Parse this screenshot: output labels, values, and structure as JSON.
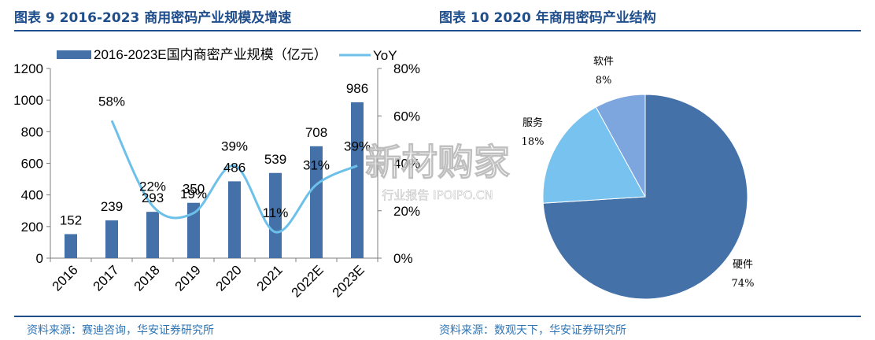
{
  "header": {
    "left_title": "图表 9 2016-2023 商用密码产业规模及增速",
    "right_title": "图表 10 2020 年商用密码产业结构"
  },
  "footer": {
    "left_source": "资料来源：赛迪咨询，华安证券研究所",
    "right_source": "资料来源：数观天下，华安证券研究所"
  },
  "watermark": {
    "main": "新材购家",
    "sub": "行业报告 IPOIPO.CN"
  },
  "colors": {
    "bar": "#4472a8",
    "line": "#6cc0ea",
    "pie": [
      "#4472a8",
      "#78c2f0",
      "#7ea6de"
    ]
  },
  "chart_data": [
    {
      "type": "bar+line",
      "categories": [
        "2016",
        "2017",
        "2018",
        "2019",
        "2020",
        "2021",
        "2022E",
        "2023E"
      ],
      "series": [
        {
          "name": "2016-2023E国内商密产业规模（亿元）",
          "type": "bar",
          "axis": "left",
          "values": [
            152,
            239,
            293,
            350,
            486,
            539,
            708,
            986
          ],
          "labels": [
            "152",
            "239",
            "293",
            "350",
            "486",
            "539",
            "708",
            "986"
          ]
        },
        {
          "name": "YoY",
          "type": "line",
          "axis": "right",
          "values": [
            null,
            58,
            22,
            19,
            39,
            11,
            31,
            39
          ],
          "labels": [
            "",
            "58%",
            "22%",
            "19%",
            "39%",
            "11%",
            "31%",
            "39%"
          ]
        }
      ],
      "y_left": {
        "ylim": [
          0,
          1200
        ],
        "ticks": [
          0,
          200,
          400,
          600,
          800,
          1000,
          1200
        ]
      },
      "y_right": {
        "ylim": [
          0,
          80
        ],
        "ticks": [
          0,
          20,
          40,
          60,
          80
        ],
        "tick_labels": [
          "0%",
          "20%",
          "40%",
          "60%",
          "80%"
        ]
      },
      "legend": "top"
    },
    {
      "type": "pie",
      "slices": [
        {
          "label": "硬件",
          "value": 74,
          "pct_label": "74%"
        },
        {
          "label": "服务",
          "value": 18,
          "pct_label": "18%"
        },
        {
          "label": "软件",
          "value": 8,
          "pct_label": "8%"
        }
      ]
    }
  ]
}
